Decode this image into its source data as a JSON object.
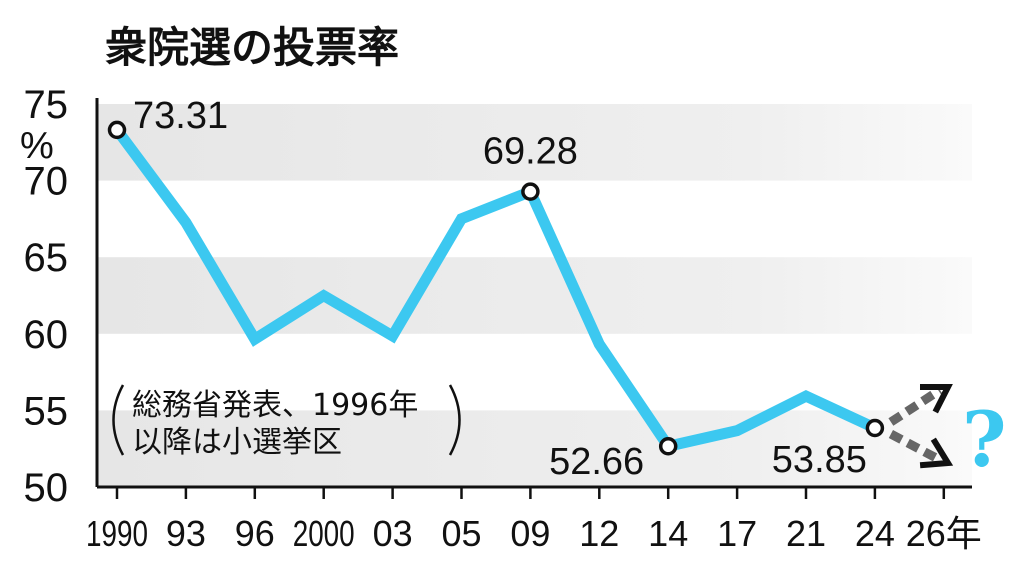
{
  "chart_data": {
    "type": "line",
    "title": "衆院選の投票率",
    "ylabel": "%",
    "ylim": [
      50,
      75
    ],
    "yticks": [
      "50",
      "55",
      "60",
      "65",
      "70",
      "75"
    ],
    "xtick_labels": [
      "1990",
      "93",
      "96",
      "2000",
      "03",
      "05",
      "09",
      "12",
      "14",
      "17",
      "21",
      "24",
      "26年"
    ],
    "x": [
      1990,
      1993,
      1996,
      2000,
      2003,
      2005,
      2009,
      2012,
      2014,
      2017,
      2021,
      2024
    ],
    "values": [
      73.31,
      67.26,
      59.65,
      62.49,
      59.86,
      67.51,
      69.28,
      59.32,
      52.66,
      53.68,
      55.93,
      53.85
    ],
    "data_labels": [
      {
        "index": 0,
        "text": "73.31"
      },
      {
        "index": 6,
        "text": "69.28"
      },
      {
        "index": 8,
        "text": "52.66"
      },
      {
        "index": 11,
        "text": "53.85"
      }
    ],
    "note_line1": "総務省発表、1996年",
    "note_line2": "以降は小選挙区",
    "future_mark": "?",
    "colors": {
      "line": "#3cc8f0",
      "band": "#ebebeb",
      "arrow": "#666666",
      "marker_fill": "#ffffff"
    },
    "grid": "alternating-bands"
  }
}
